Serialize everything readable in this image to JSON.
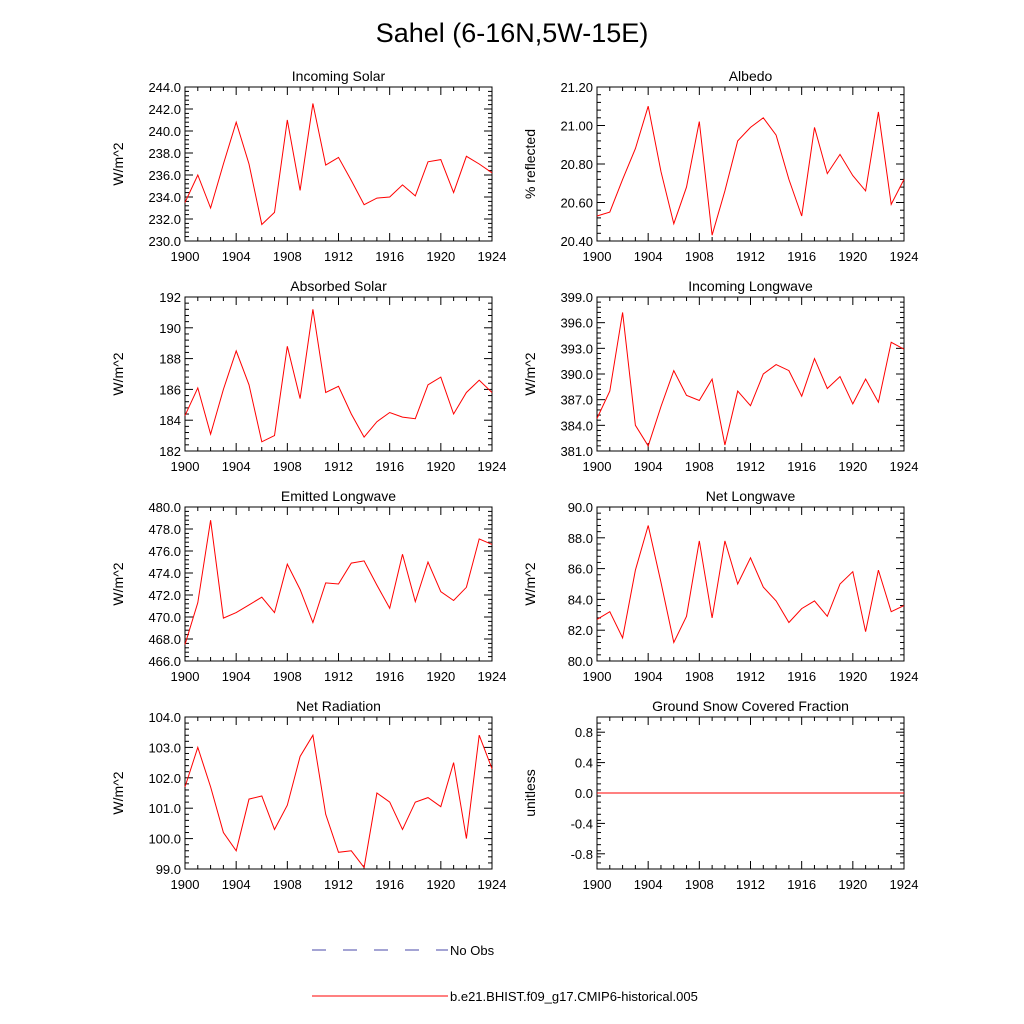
{
  "figure": {
    "title": "Sahel (6-16N,5W-15E)",
    "colors": {
      "model": "#ff0000",
      "obs": "#4a4aa8",
      "axis": "#000000"
    },
    "legend": {
      "obs_label": "No Obs",
      "model_label": "b.e21.BHIST.f09_g17.CMIP6-historical.005"
    }
  },
  "chart_data": [
    {
      "type": "line",
      "title": "Incoming Solar",
      "ylabel": "W/m^2",
      "xlim": [
        1900,
        1924
      ],
      "ylim": [
        230,
        244
      ],
      "xticks": [
        "1900",
        "1904",
        "1908",
        "1912",
        "1916",
        "1920",
        "1924"
      ],
      "yticks": [
        "230.0",
        "232.0",
        "234.0",
        "236.0",
        "238.0",
        "240.0",
        "242.0",
        "244.0"
      ],
      "x": [
        1900,
        1901,
        1902,
        1903,
        1904,
        1905,
        1906,
        1907,
        1908,
        1909,
        1910,
        1911,
        1912,
        1913,
        1914,
        1915,
        1916,
        1917,
        1918,
        1919,
        1920,
        1921,
        1922,
        1923,
        1924
      ],
      "series": [
        {
          "values": [
            233.5,
            236.0,
            233.0,
            237.0,
            240.8,
            237.0,
            231.5,
            232.6,
            241.0,
            234.6,
            242.5,
            236.9,
            237.6,
            235.5,
            233.3,
            233.9,
            234.0,
            235.1,
            234.1,
            237.2,
            237.4,
            234.4,
            237.7,
            237.0,
            236.2
          ]
        }
      ]
    },
    {
      "type": "line",
      "title": "Albedo",
      "ylabel": "% reflected",
      "xlim": [
        1900,
        1924
      ],
      "ylim": [
        20.4,
        21.2
      ],
      "xticks": [
        "1900",
        "1904",
        "1908",
        "1912",
        "1916",
        "1920",
        "1924"
      ],
      "yticks": [
        "20.40",
        "20.60",
        "20.80",
        "21.00",
        "21.20"
      ],
      "x": [
        1900,
        1901,
        1902,
        1903,
        1904,
        1905,
        1906,
        1907,
        1908,
        1909,
        1910,
        1911,
        1912,
        1913,
        1914,
        1915,
        1916,
        1917,
        1918,
        1919,
        1920,
        1921,
        1922,
        1923,
        1924
      ],
      "series": [
        {
          "values": [
            20.53,
            20.55,
            20.72,
            20.88,
            21.1,
            20.76,
            20.49,
            20.68,
            21.02,
            20.43,
            20.66,
            20.92,
            20.99,
            21.04,
            20.95,
            20.72,
            20.53,
            20.99,
            20.75,
            20.85,
            20.74,
            20.66,
            21.07,
            20.59,
            20.72
          ]
        }
      ]
    },
    {
      "type": "line",
      "title": "Absorbed Solar",
      "ylabel": "W/m^2",
      "xlim": [
        1900,
        1924
      ],
      "ylim": [
        182,
        192
      ],
      "xticks": [
        "1900",
        "1904",
        "1908",
        "1912",
        "1916",
        "1920",
        "1924"
      ],
      "yticks": [
        "182",
        "184",
        "186",
        "188",
        "190",
        "192"
      ],
      "x": [
        1900,
        1901,
        1902,
        1903,
        1904,
        1905,
        1906,
        1907,
        1908,
        1909,
        1910,
        1911,
        1912,
        1913,
        1914,
        1915,
        1916,
        1917,
        1918,
        1919,
        1920,
        1921,
        1922,
        1923,
        1924
      ],
      "series": [
        {
          "values": [
            184.3,
            186.1,
            183.1,
            186.0,
            188.5,
            186.3,
            182.6,
            183.0,
            188.8,
            185.4,
            191.2,
            185.8,
            186.2,
            184.4,
            182.9,
            183.9,
            184.5,
            184.2,
            184.1,
            186.3,
            186.8,
            184.4,
            185.8,
            186.6,
            185.8
          ]
        }
      ]
    },
    {
      "type": "line",
      "title": "Incoming Longwave",
      "ylabel": "W/m^2",
      "xlim": [
        1900,
        1924
      ],
      "ylim": [
        381,
        399
      ],
      "xticks": [
        "1900",
        "1904",
        "1908",
        "1912",
        "1916",
        "1920",
        "1924"
      ],
      "yticks": [
        "381.0",
        "384.0",
        "387.0",
        "390.0",
        "393.0",
        "396.0",
        "399.0"
      ],
      "x": [
        1900,
        1901,
        1902,
        1903,
        1904,
        1905,
        1906,
        1907,
        1908,
        1909,
        1910,
        1911,
        1912,
        1913,
        1914,
        1915,
        1916,
        1917,
        1918,
        1919,
        1920,
        1921,
        1922,
        1923,
        1924
      ],
      "series": [
        {
          "values": [
            384.8,
            388.0,
            397.2,
            384.0,
            381.6,
            386.2,
            390.4,
            387.5,
            386.9,
            389.4,
            381.7,
            388.0,
            386.3,
            390.0,
            391.1,
            390.4,
            387.4,
            391.8,
            388.3,
            389.7,
            386.5,
            389.4,
            386.7,
            393.7,
            392.9
          ]
        }
      ]
    },
    {
      "type": "line",
      "title": "Emitted Longwave",
      "ylabel": "W/m^2",
      "xlim": [
        1900,
        1924
      ],
      "ylim": [
        466,
        480
      ],
      "xticks": [
        "1900",
        "1904",
        "1908",
        "1912",
        "1916",
        "1920",
        "1924"
      ],
      "yticks": [
        "466.0",
        "468.0",
        "470.0",
        "472.0",
        "474.0",
        "476.0",
        "478.0",
        "480.0"
      ],
      "x": [
        1900,
        1901,
        1902,
        1903,
        1904,
        1905,
        1906,
        1907,
        1908,
        1909,
        1910,
        1911,
        1912,
        1913,
        1914,
        1915,
        1916,
        1917,
        1918,
        1919,
        1920,
        1921,
        1922,
        1923,
        1924
      ],
      "series": [
        {
          "values": [
            467.5,
            471.3,
            478.8,
            469.9,
            470.4,
            471.1,
            471.8,
            470.4,
            474.8,
            472.5,
            469.5,
            473.1,
            473.0,
            474.9,
            475.1,
            472.9,
            470.8,
            475.7,
            471.4,
            475.0,
            472.3,
            471.5,
            472.7,
            477.1,
            476.6
          ]
        }
      ]
    },
    {
      "type": "line",
      "title": "Net Longwave",
      "ylabel": "W/m^2",
      "xlim": [
        1900,
        1924
      ],
      "ylim": [
        80,
        90
      ],
      "xticks": [
        "1900",
        "1904",
        "1908",
        "1912",
        "1916",
        "1920",
        "1924"
      ],
      "yticks": [
        "80.0",
        "82.0",
        "84.0",
        "86.0",
        "88.0",
        "90.0"
      ],
      "x": [
        1900,
        1901,
        1902,
        1903,
        1904,
        1905,
        1906,
        1907,
        1908,
        1909,
        1910,
        1911,
        1912,
        1913,
        1914,
        1915,
        1916,
        1917,
        1918,
        1919,
        1920,
        1921,
        1922,
        1923,
        1924
      ],
      "series": [
        {
          "values": [
            82.7,
            83.2,
            81.5,
            85.9,
            88.8,
            85.1,
            81.2,
            82.9,
            87.8,
            82.8,
            87.8,
            85.0,
            86.7,
            84.8,
            83.9,
            82.5,
            83.4,
            83.9,
            82.9,
            85.0,
            85.8,
            81.9,
            85.9,
            83.2,
            83.6
          ]
        }
      ]
    },
    {
      "type": "line",
      "title": "Net Radiation",
      "ylabel": "W/m^2",
      "xlim": [
        1900,
        1924
      ],
      "ylim": [
        99,
        104
      ],
      "xticks": [
        "1900",
        "1904",
        "1908",
        "1912",
        "1916",
        "1920",
        "1924"
      ],
      "yticks": [
        "99.0",
        "100.0",
        "101.0",
        "102.0",
        "103.0",
        "104.0"
      ],
      "x": [
        1900,
        1901,
        1902,
        1903,
        1904,
        1905,
        1906,
        1907,
        1908,
        1909,
        1910,
        1911,
        1912,
        1913,
        1914,
        1915,
        1916,
        1917,
        1918,
        1919,
        1920,
        1921,
        1922,
        1923,
        1924
      ],
      "series": [
        {
          "values": [
            101.7,
            103.0,
            101.7,
            100.2,
            99.6,
            101.3,
            101.4,
            100.3,
            101.1,
            102.7,
            103.4,
            100.8,
            99.55,
            99.6,
            99.05,
            101.5,
            101.2,
            100.3,
            101.2,
            101.35,
            101.05,
            102.5,
            100.0,
            103.4,
            102.3
          ]
        }
      ]
    },
    {
      "type": "line",
      "title": "Ground Snow Covered Fraction",
      "ylabel": "unitless",
      "xlim": [
        1900,
        1924
      ],
      "ylim": [
        -1,
        1
      ],
      "xticks": [
        "1900",
        "1904",
        "1908",
        "1912",
        "1916",
        "1920",
        "1924"
      ],
      "yticks": [
        "-0.8",
        "-0.4",
        "0.0",
        "0.4",
        "0.8"
      ],
      "ytick_values": [
        -0.8,
        -0.4,
        0.0,
        0.4,
        0.8
      ],
      "x": [
        1900,
        1901,
        1902,
        1903,
        1904,
        1905,
        1906,
        1907,
        1908,
        1909,
        1910,
        1911,
        1912,
        1913,
        1914,
        1915,
        1916,
        1917,
        1918,
        1919,
        1920,
        1921,
        1922,
        1923,
        1924
      ],
      "series": [
        {
          "values": [
            0,
            0,
            0,
            0,
            0,
            0,
            0,
            0,
            0,
            0,
            0,
            0,
            0,
            0,
            0,
            0,
            0,
            0,
            0,
            0,
            0,
            0,
            0,
            0,
            0
          ]
        }
      ]
    }
  ]
}
